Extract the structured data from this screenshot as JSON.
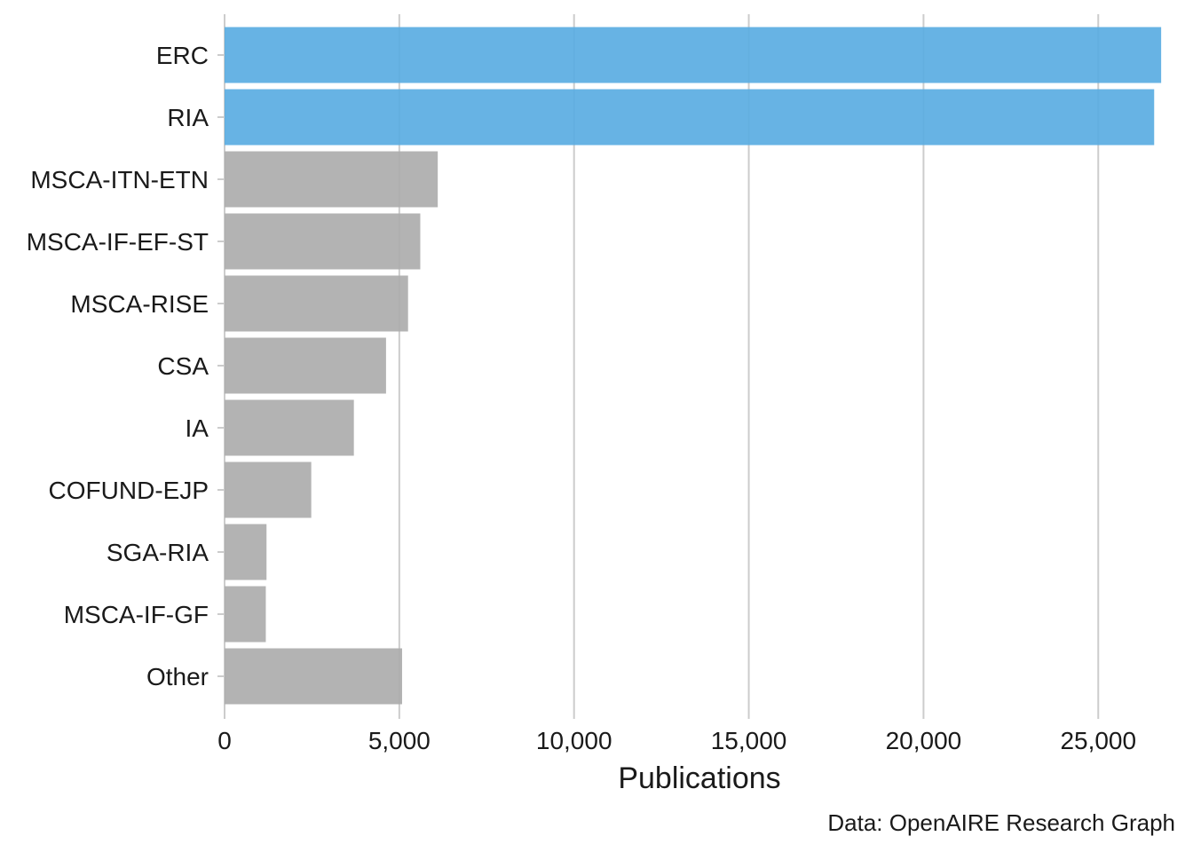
{
  "chart_data": {
    "type": "bar",
    "orientation": "horizontal",
    "categories": [
      "ERC",
      "RIA",
      "MSCA-ITN-ETN",
      "MSCA-IF-EF-ST",
      "MSCA-RISE",
      "CSA",
      "IA",
      "COFUND-EJP",
      "SGA-RIA",
      "MSCA-IF-GF",
      "Other"
    ],
    "values": [
      26800,
      26600,
      6100,
      5600,
      5250,
      4620,
      3700,
      2480,
      1200,
      1180,
      5080
    ],
    "highlighted": [
      "ERC",
      "RIA"
    ],
    "xlabel": "Publications",
    "ylabel": "",
    "xlim": [
      0,
      27000
    ],
    "xticks": [
      0,
      5000,
      10000,
      15000,
      20000,
      25000
    ],
    "xtick_labels": [
      "0",
      "5,000",
      "10,000",
      "15,000",
      "20,000",
      "25,000"
    ],
    "grid": "vertical",
    "caption": "Data: OpenAIRE Research Graph",
    "colors": {
      "highlight": "#5aade2",
      "default": "#adadad",
      "grid": "#cccccc"
    }
  }
}
